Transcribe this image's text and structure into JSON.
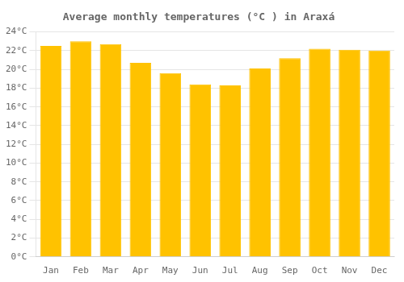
{
  "chart_data": {
    "type": "bar",
    "title": "Average monthly temperatures (°C ) in Araxá",
    "categories": [
      "Jan",
      "Feb",
      "Mar",
      "Apr",
      "May",
      "Jun",
      "Jul",
      "Aug",
      "Sep",
      "Oct",
      "Nov",
      "Dec"
    ],
    "values": [
      22.5,
      23.0,
      22.7,
      20.7,
      19.6,
      18.4,
      18.3,
      20.1,
      21.2,
      22.2,
      22.1,
      22.0
    ],
    "color": "#FFC200",
    "ylim": [
      0,
      24
    ],
    "yticks": [
      {
        "value": 0,
        "label": "0°C"
      },
      {
        "value": 2,
        "label": "2°C"
      },
      {
        "value": 4,
        "label": "4°C"
      },
      {
        "value": 6,
        "label": "6°C"
      },
      {
        "value": 8,
        "label": "8°C"
      },
      {
        "value": 10,
        "label": "10°C"
      },
      {
        "value": 12,
        "label": "12°C"
      },
      {
        "value": 14,
        "label": "14°C"
      },
      {
        "value": 16,
        "label": "16°C"
      },
      {
        "value": 18,
        "label": "18°C"
      },
      {
        "value": 20,
        "label": "20°C"
      },
      {
        "value": 22,
        "label": "22°C"
      },
      {
        "value": 24,
        "label": "24°C"
      }
    ],
    "grid": true
  }
}
